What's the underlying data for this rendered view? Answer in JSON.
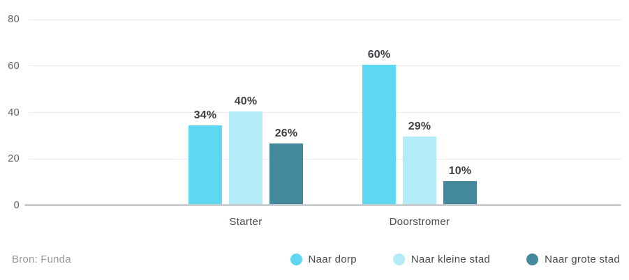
{
  "chart_data": {
    "type": "bar",
    "title": "",
    "xlabel": "",
    "ylabel": "",
    "categories": [
      "Starter",
      "Doorstromer"
    ],
    "series": [
      {
        "name": "Naar dorp",
        "color": "#5ED7F3",
        "values": [
          34,
          60
        ]
      },
      {
        "name": "Naar kleine stad",
        "color": "#B3EBF6",
        "values": [
          40,
          29
        ]
      },
      {
        "name": "Naar grote stad",
        "color": "#44899B",
        "values": [
          26,
          10
        ]
      }
    ],
    "value_suffix": "%",
    "yticks": [
      0,
      20,
      40,
      60,
      80
    ],
    "ylim": [
      0,
      80
    ],
    "grid": true,
    "legend_position": "bottom-right"
  },
  "footer": {
    "source": "Bron: Funda"
  },
  "colors": {
    "background": "#ffffff",
    "grid_line": "#ececec",
    "baseline": "#c9cccf",
    "axis_label": "#5c6065",
    "category_label": "#45494e",
    "value_label": "#3c4045",
    "source_text": "#94979a"
  }
}
